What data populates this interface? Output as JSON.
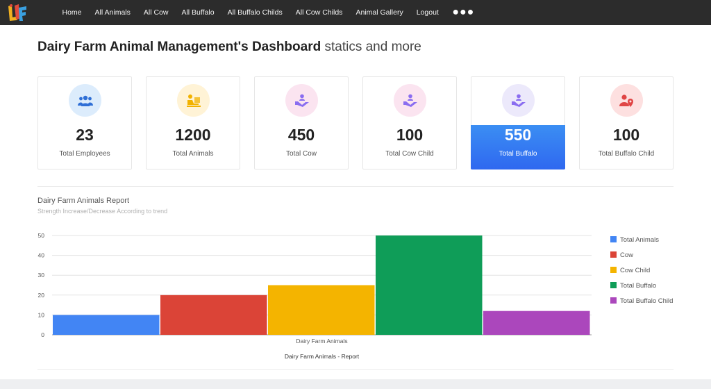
{
  "nav": {
    "items": [
      "Home",
      "All Animals",
      "All Cow",
      "All Buffalo",
      "All Buffalo Childs",
      "All Cow Childs",
      "Animal Gallery",
      "Logout"
    ],
    "more": "●●●"
  },
  "header": {
    "title_bold": "Dairy Farm Animal Management's Dashboard",
    "title_rest": "statics and more"
  },
  "cards": [
    {
      "value": "23",
      "label": "Total Employees",
      "icon": "users-icon",
      "circle_color": "#dcecfc",
      "icon_color": "#2f6fd6"
    },
    {
      "value": "1200",
      "label": "Total Animals",
      "icon": "person-at-desk-icon",
      "circle_color": "#fff3d6",
      "icon_color": "#f2b200"
    },
    {
      "value": "450",
      "label": "Total Cow",
      "icon": "hand-care-icon",
      "circle_color": "#fbe4f0",
      "icon_color": "#8a6df0"
    },
    {
      "value": "100",
      "label": "Total Cow Child",
      "icon": "hand-care-icon",
      "circle_color": "#fbe4f0",
      "icon_color": "#8a6df0"
    },
    {
      "value": "550",
      "label": "Total Buffalo",
      "icon": "hand-care-icon",
      "circle_color": "#ece9fb",
      "icon_color": "#8a6df0",
      "active": true
    },
    {
      "value": "100",
      "label": "Total Buffalo Child",
      "icon": "user-location-icon",
      "circle_color": "#fde0e0",
      "icon_color": "#e04545"
    }
  ],
  "report": {
    "title": "Dairy Farm Animals Report",
    "subtitle": "Strength Increase/Decrease According to trend"
  },
  "chart_data": {
    "type": "bar",
    "categories": [
      "Dairy Farm Animals"
    ],
    "series": [
      {
        "name": "Total Animals",
        "values": [
          10
        ],
        "color": "#4285f4"
      },
      {
        "name": "Cow",
        "values": [
          20
        ],
        "color": "#db4437"
      },
      {
        "name": "Cow Child",
        "values": [
          25
        ],
        "color": "#f4b400"
      },
      {
        "name": "Total Buffalo",
        "values": [
          50
        ],
        "color": "#0f9d58"
      },
      {
        "name": "Total Buffalo Child",
        "values": [
          12
        ],
        "color": "#ab47bc"
      }
    ],
    "title": "Dairy Farm Animals - Report",
    "ylim": [
      0,
      50
    ],
    "yticks": [
      "0",
      "10",
      "20",
      "30",
      "40",
      "50"
    ],
    "grid": true,
    "legend": "right"
  }
}
